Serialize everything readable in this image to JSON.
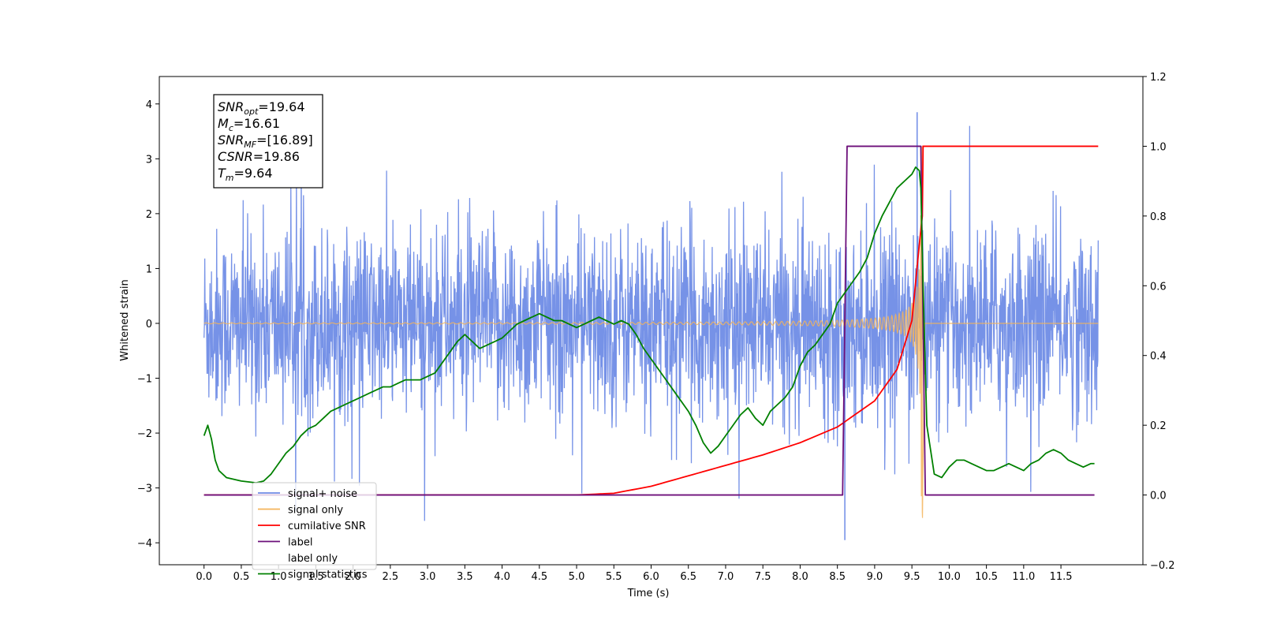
{
  "chart_data": {
    "type": "line",
    "title": "",
    "xlabel": "Time (s)",
    "ylabel": "Whitened strain",
    "xlim": [
      -0.6,
      12.6
    ],
    "ylim": [
      -4.4,
      4.5
    ],
    "y2lim": [
      -0.2,
      1.2
    ],
    "x_ticks": [
      "0.0",
      "0.5",
      "1.0",
      "1.5",
      "2.0",
      "2.5",
      "3.0",
      "3.5",
      "4.0",
      "4.5",
      "5.0",
      "5.5",
      "6.0",
      "6.5",
      "7.0",
      "7.5",
      "8.0",
      "8.5",
      "9.0",
      "9.5",
      "10.0",
      "10.5",
      "11.0",
      "11.5"
    ],
    "y_ticks": [
      "4",
      "3",
      "2",
      "1",
      "0",
      "−1",
      "−2",
      "−3",
      "−4"
    ],
    "y2_ticks": [
      "1.2",
      "1.0",
      "0.8",
      "0.6",
      "0.4",
      "0.2",
      "0.0",
      "−0.2"
    ],
    "grid": false,
    "legend_position": "lower-left",
    "annotations": [
      {
        "base": "SNR",
        "sub": "opt",
        "rest": "=19.64"
      },
      {
        "base": "M",
        "sub": "c",
        "rest": "=16.61"
      },
      {
        "base": "SNR",
        "sub": "MF",
        "rest": "=[16.89]"
      },
      {
        "base": "CSNR",
        "sub": "",
        "rest": "=19.86"
      },
      {
        "base": "T",
        "sub": "m",
        "rest": "=9.64"
      }
    ],
    "series": [
      {
        "name": "signal+ noise",
        "color": "#6f8ce6",
        "axis": "left",
        "x_range": [
          0.0,
          12.0
        ],
        "noise_std": 0.85,
        "y_extremes": [
          -3.95,
          3.85
        ]
      },
      {
        "name": "signal only",
        "color": "#f5b45a",
        "axis": "left",
        "x_range": [
          0.0,
          12.0
        ],
        "merger_time": 9.64,
        "peak_amplitude": 3.45,
        "min_value": -3.8
      },
      {
        "name": "cumilative SNR",
        "color": "#ff0000",
        "axis": "right",
        "x": [
          0.0,
          5.0,
          5.5,
          6.0,
          6.5,
          7.0,
          7.5,
          8.0,
          8.5,
          9.0,
          9.3,
          9.5,
          9.6,
          9.64,
          9.65,
          12.0
        ],
        "y": [
          0.0,
          0.0,
          0.005,
          0.025,
          0.055,
          0.085,
          0.115,
          0.15,
          0.195,
          0.27,
          0.36,
          0.5,
          0.72,
          0.8,
          1.0,
          1.0
        ]
      },
      {
        "name": "label",
        "color": "#6c0f7a",
        "axis": "right",
        "x": [
          0.0,
          8.57,
          8.63,
          9.62,
          9.68,
          11.95
        ],
        "y": [
          0.0,
          0.0,
          1.0,
          1.0,
          0.0,
          0.0
        ]
      },
      {
        "name": "label only",
        "color": "#ffffff",
        "axis": "right",
        "x": [],
        "y": []
      },
      {
        "name": "signal statistics",
        "color": "#008000",
        "axis": "right",
        "x": [
          0.0,
          0.05,
          0.1,
          0.15,
          0.2,
          0.3,
          0.5,
          0.7,
          0.8,
          0.9,
          1.0,
          1.1,
          1.2,
          1.3,
          1.4,
          1.5,
          1.6,
          1.7,
          1.8,
          1.9,
          2.0,
          2.1,
          2.2,
          2.3,
          2.4,
          2.5,
          2.6,
          2.7,
          2.8,
          2.9,
          3.0,
          3.1,
          3.2,
          3.3,
          3.4,
          3.5,
          3.6,
          3.7,
          3.8,
          3.9,
          4.0,
          4.1,
          4.2,
          4.3,
          4.4,
          4.5,
          4.6,
          4.7,
          4.8,
          4.9,
          5.0,
          5.1,
          5.2,
          5.3,
          5.4,
          5.5,
          5.6,
          5.7,
          5.8,
          5.9,
          6.0,
          6.1,
          6.2,
          6.3,
          6.4,
          6.5,
          6.6,
          6.7,
          6.8,
          6.9,
          7.0,
          7.1,
          7.2,
          7.3,
          7.4,
          7.5,
          7.6,
          7.7,
          7.8,
          7.9,
          8.0,
          8.1,
          8.2,
          8.3,
          8.4,
          8.5,
          8.6,
          8.7,
          8.8,
          8.9,
          9.0,
          9.1,
          9.2,
          9.3,
          9.4,
          9.5,
          9.55,
          9.6,
          9.62,
          9.65,
          9.7,
          9.8,
          9.9,
          10.0,
          10.1,
          10.2,
          10.3,
          10.4,
          10.5,
          10.6,
          10.7,
          10.8,
          10.9,
          11.0,
          11.1,
          11.2,
          11.3,
          11.4,
          11.5,
          11.6,
          11.7,
          11.8,
          11.9,
          11.95
        ],
        "y": [
          0.17,
          0.2,
          0.16,
          0.1,
          0.07,
          0.05,
          0.04,
          0.035,
          0.04,
          0.06,
          0.09,
          0.12,
          0.14,
          0.17,
          0.19,
          0.2,
          0.22,
          0.24,
          0.25,
          0.26,
          0.27,
          0.28,
          0.29,
          0.3,
          0.31,
          0.31,
          0.32,
          0.33,
          0.33,
          0.33,
          0.34,
          0.35,
          0.38,
          0.41,
          0.44,
          0.46,
          0.44,
          0.42,
          0.43,
          0.44,
          0.45,
          0.47,
          0.49,
          0.5,
          0.51,
          0.52,
          0.51,
          0.5,
          0.5,
          0.49,
          0.48,
          0.49,
          0.5,
          0.51,
          0.5,
          0.49,
          0.5,
          0.49,
          0.46,
          0.42,
          0.39,
          0.36,
          0.33,
          0.3,
          0.27,
          0.24,
          0.2,
          0.15,
          0.12,
          0.14,
          0.17,
          0.2,
          0.23,
          0.25,
          0.22,
          0.2,
          0.24,
          0.26,
          0.28,
          0.31,
          0.37,
          0.41,
          0.43,
          0.46,
          0.49,
          0.55,
          0.58,
          0.61,
          0.64,
          0.68,
          0.75,
          0.8,
          0.84,
          0.88,
          0.9,
          0.92,
          0.94,
          0.93,
          0.88,
          0.6,
          0.2,
          0.06,
          0.05,
          0.08,
          0.1,
          0.1,
          0.09,
          0.08,
          0.07,
          0.07,
          0.08,
          0.09,
          0.08,
          0.07,
          0.09,
          0.1,
          0.12,
          0.13,
          0.12,
          0.1,
          0.09,
          0.08,
          0.09,
          0.09
        ]
      }
    ]
  }
}
